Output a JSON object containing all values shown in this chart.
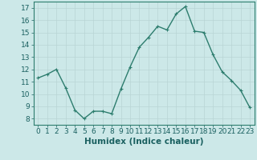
{
  "x": [
    0,
    1,
    2,
    3,
    4,
    5,
    6,
    7,
    8,
    9,
    10,
    11,
    12,
    13,
    14,
    15,
    16,
    17,
    18,
    19,
    20,
    21,
    22,
    23
  ],
  "y": [
    11.3,
    11.6,
    12.0,
    10.5,
    8.7,
    8.0,
    8.6,
    8.6,
    8.4,
    10.4,
    12.2,
    13.8,
    14.6,
    15.5,
    15.2,
    16.5,
    17.1,
    15.1,
    15.0,
    13.2,
    11.8,
    11.1,
    10.3,
    8.9
  ],
  "line_color": "#2d7d6e",
  "marker": "+",
  "marker_size": 3,
  "bg_color": "#cce8e8",
  "grid_major_color": "#b8d4d4",
  "grid_minor_color": "#d5e8e8",
  "xlabel": "Humidex (Indice chaleur)",
  "xlim": [
    -0.5,
    23.5
  ],
  "ylim": [
    7.5,
    17.5
  ],
  "yticks": [
    8,
    9,
    10,
    11,
    12,
    13,
    14,
    15,
    16,
    17
  ],
  "xticks": [
    0,
    1,
    2,
    3,
    4,
    5,
    6,
    7,
    8,
    9,
    10,
    11,
    12,
    13,
    14,
    15,
    16,
    17,
    18,
    19,
    20,
    21,
    22,
    23
  ],
  "tick_color": "#1a6060",
  "tick_fontsize": 6.5,
  "xlabel_fontsize": 7.5,
  "line_width": 1.0,
  "spine_color": "#2d7d6e"
}
